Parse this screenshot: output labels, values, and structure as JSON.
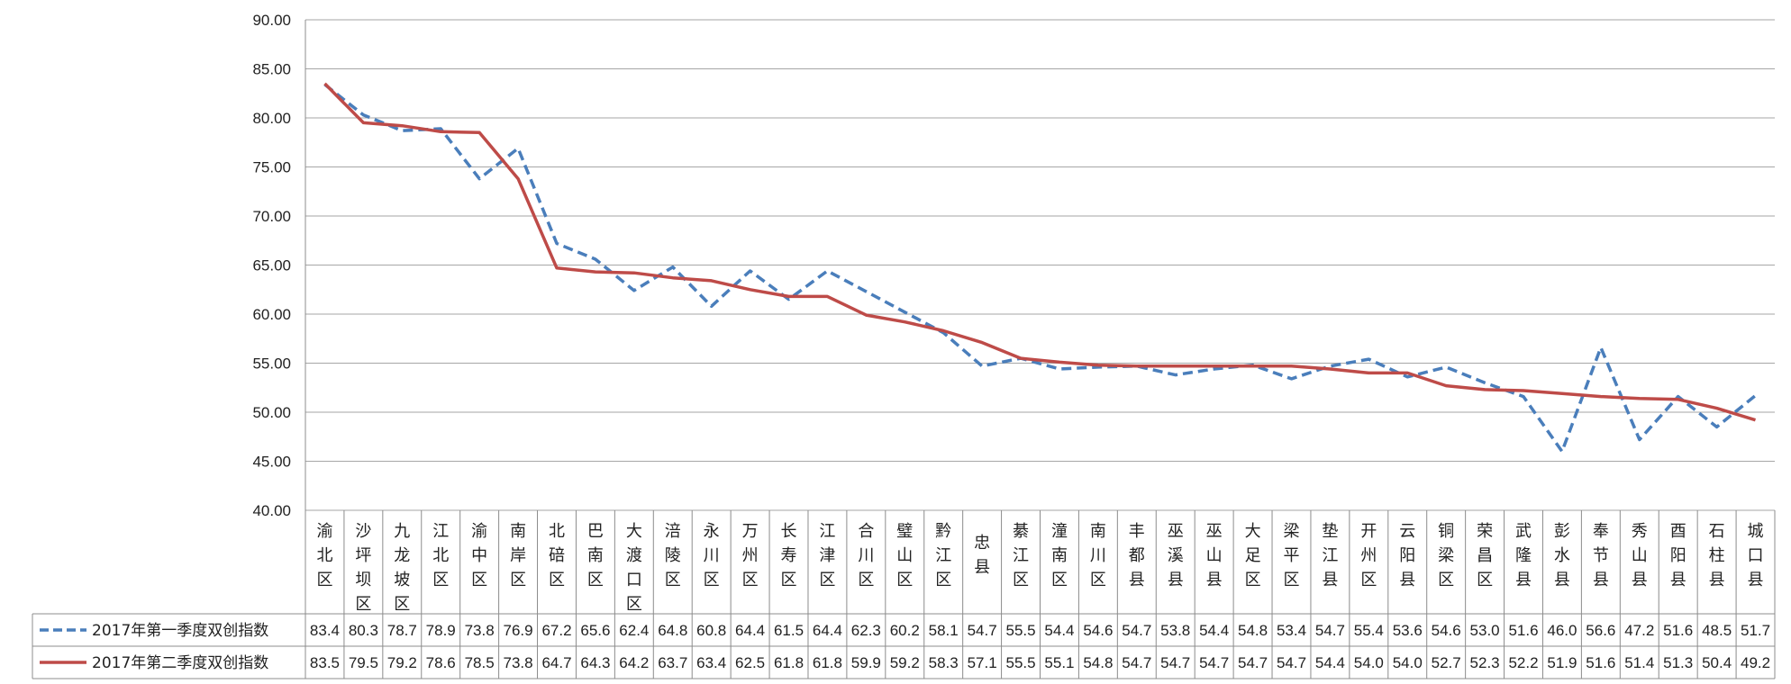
{
  "chart_data": {
    "type": "line",
    "title": "",
    "xlabel": "",
    "ylabel": "",
    "ylim": [
      40,
      90
    ],
    "yticks": [
      "40.00",
      "45.00",
      "50.00",
      "55.00",
      "60.00",
      "65.00",
      "70.00",
      "75.00",
      "80.00",
      "85.00",
      "90.00"
    ],
    "grid": true,
    "legend_position": "data-table-left",
    "categories": [
      "渝北区",
      "沙坪坝区",
      "九龙坡区",
      "江北区",
      "渝中区",
      "南岸区",
      "北碚区",
      "巴南区",
      "大渡口区",
      "涪陵区",
      "永川区",
      "万州区",
      "长寿区",
      "江津区",
      "合川区",
      "璧山区",
      "黔江区",
      "忠县",
      "綦江区",
      "潼南区",
      "南川区",
      "丰都县",
      "巫溪县",
      "巫山县",
      "大足区",
      "梁平区",
      "垫江县",
      "开州区",
      "云阳县",
      "铜梁区",
      "荣昌区",
      "武隆县",
      "彭水县",
      "奉节县",
      "秀山县",
      "酉阳县",
      "石柱县",
      "城口县"
    ],
    "series": [
      {
        "name": "2017年第一季度双创指数",
        "color": "#4a7ebb",
        "style": "dashed",
        "values": [
          "83.4",
          "80.3",
          "78.7",
          "78.9",
          "73.8",
          "76.9",
          "67.2",
          "65.6",
          "62.4",
          "64.8",
          "60.8",
          "64.4",
          "61.5",
          "64.4",
          "62.3",
          "60.2",
          "58.1",
          "54.7",
          "55.5",
          "54.4",
          "54.6",
          "54.7",
          "53.8",
          "54.4",
          "54.8",
          "53.4",
          "54.7",
          "55.4",
          "53.6",
          "54.6",
          "53.0",
          "51.6",
          "46.0",
          "56.6",
          "47.2",
          "51.6",
          "48.5",
          "51.7"
        ]
      },
      {
        "name": "2017年第二季度双创指数",
        "color": "#be4b48",
        "style": "solid",
        "values": [
          "83.5",
          "79.5",
          "79.2",
          "78.6",
          "78.5",
          "73.8",
          "64.7",
          "64.3",
          "64.2",
          "63.7",
          "63.4",
          "62.5",
          "61.8",
          "61.8",
          "59.9",
          "59.2",
          "58.3",
          "57.1",
          "55.5",
          "55.1",
          "54.8",
          "54.7",
          "54.7",
          "54.7",
          "54.7",
          "54.7",
          "54.4",
          "54.0",
          "54.0",
          "52.7",
          "52.3",
          "52.2",
          "51.9",
          "51.6",
          "51.4",
          "51.3",
          "50.4",
          "49.2"
        ]
      }
    ]
  }
}
